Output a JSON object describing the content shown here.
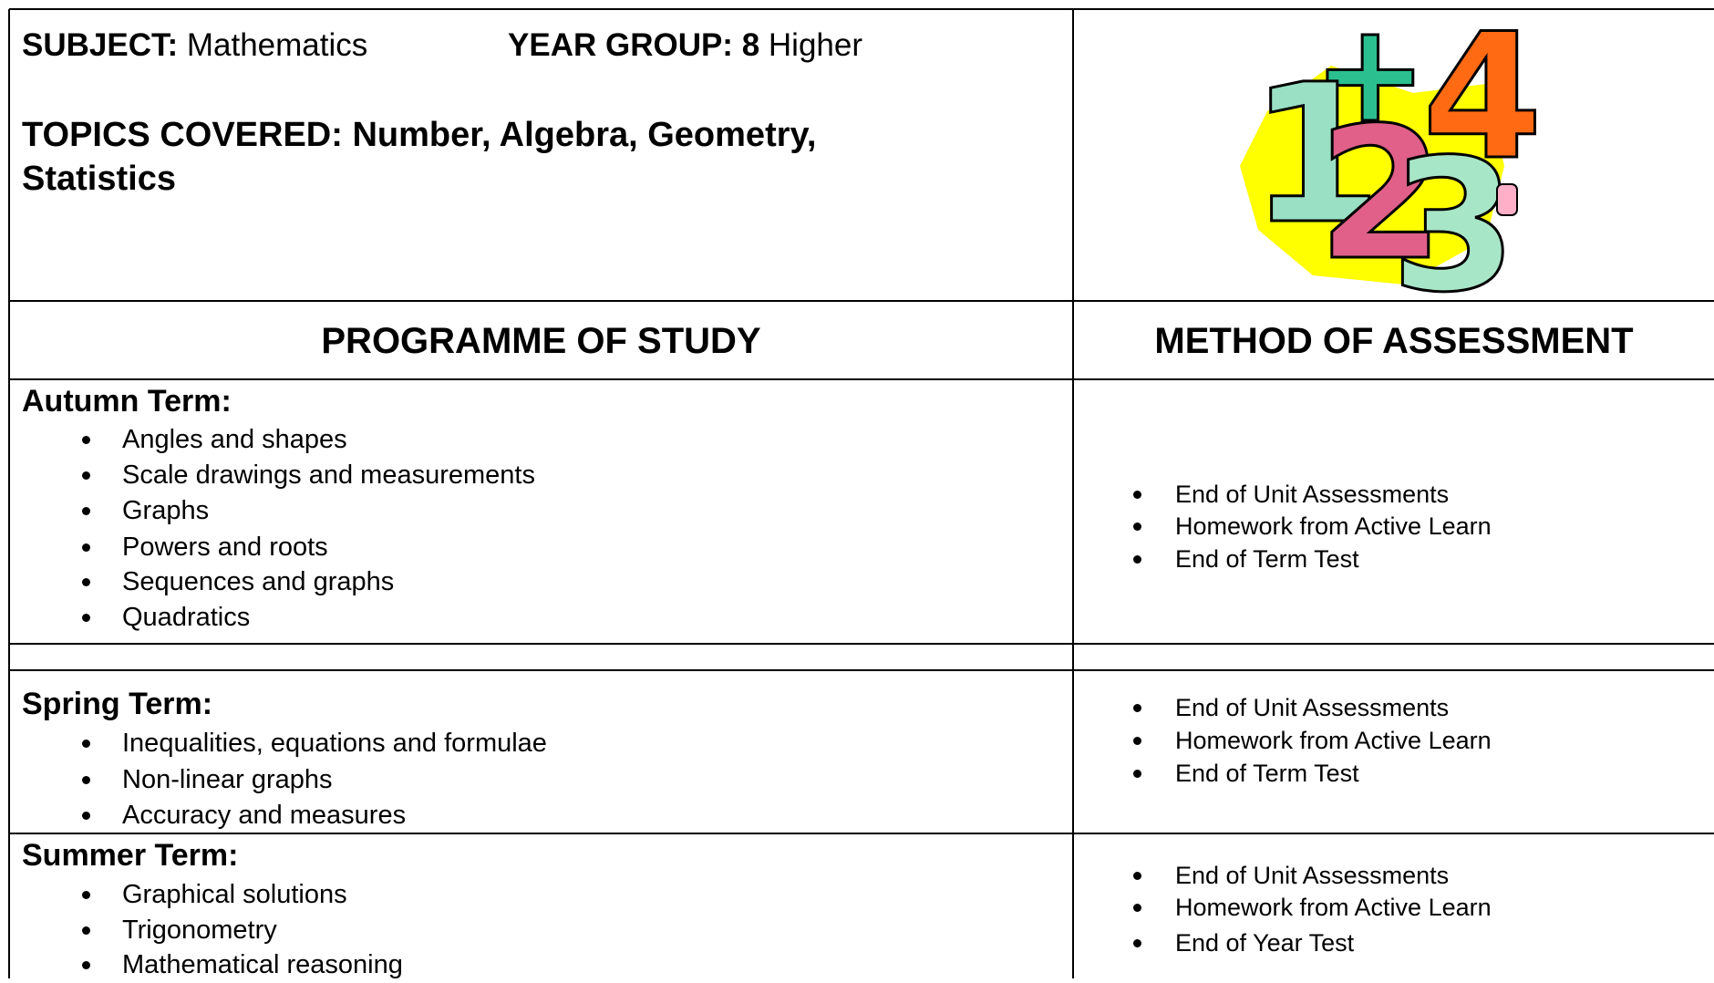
{
  "header": {
    "subject_label": "SUBJECT:",
    "subject": "Mathematics",
    "year_label": "YEAR GROUP: 8",
    "year_suffix": "Higher",
    "topics": "TOPICS COVERED: Number, Algebra, Geometry, Statistics"
  },
  "table": {
    "columns": [
      "PROGRAMME OF STUDY",
      "METHOD OF ASSESSMENT"
    ],
    "terms": [
      {
        "title": "Autumn Term:",
        "topics": [
          "Angles and shapes",
          "Scale drawings and measurements",
          "Graphs",
          "Powers and roots",
          "Sequences and graphs",
          "Quadratics"
        ],
        "assessment": [
          "End of Unit Assessments",
          "Homework from Active Learn",
          "End of Term Test"
        ]
      },
      {
        "title": "Spring Term:",
        "topics": [
          "Inequalities, equations and formulae",
          "Non-linear graphs",
          "Accuracy and measures"
        ],
        "assessment": [
          "End of Unit Assessments",
          "Homework from Active Learn",
          "End of Term Test"
        ]
      },
      {
        "title": "Summer Term:",
        "topics": [
          "Graphical solutions",
          "Trigonometry",
          "Mathematical reasoning"
        ],
        "assessment": [
          "End of Unit Assessments",
          "Homework from Active Learn",
          "End of Year Test"
        ]
      }
    ]
  }
}
